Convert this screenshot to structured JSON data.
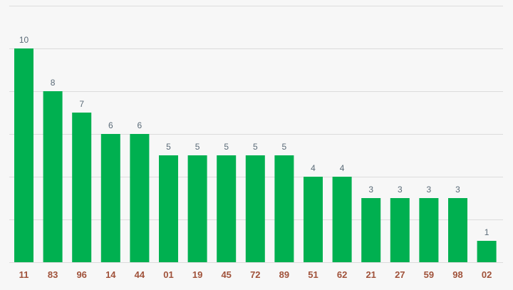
{
  "chart_data": {
    "type": "bar",
    "categories": [
      "11",
      "83",
      "96",
      "14",
      "44",
      "01",
      "19",
      "45",
      "72",
      "89",
      "51",
      "62",
      "21",
      "27",
      "59",
      "98",
      "02"
    ],
    "values": [
      10,
      8,
      7,
      6,
      6,
      5,
      5,
      5,
      5,
      5,
      4,
      4,
      3,
      3,
      3,
      3,
      1
    ],
    "ylim": [
      0,
      12
    ],
    "grid": true,
    "data_labels": true,
    "colors": {
      "bar": "#00b050",
      "value_label": "#5b6b78",
      "category_label": "#a0523a",
      "grid": "#dcdcdc",
      "background": "#f7f7f7"
    }
  }
}
